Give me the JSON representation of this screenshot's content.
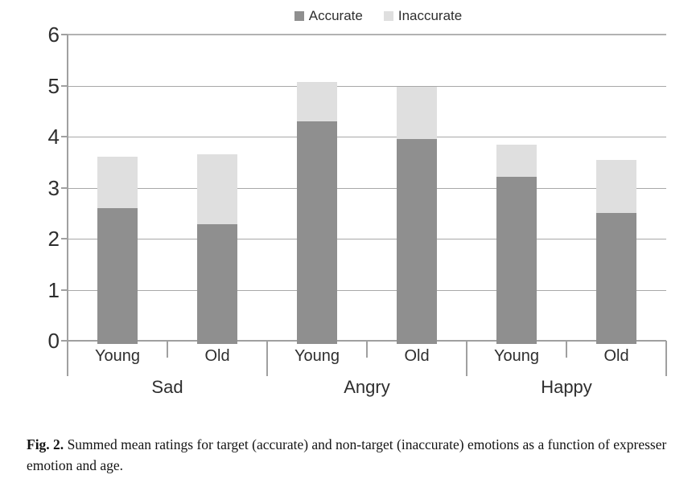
{
  "figure_caption": {
    "label": "Fig. 2.",
    "text": " Summed mean ratings for target (accurate) and non-target (inaccurate) emotions as a function of expresser emotion and age."
  },
  "chart_data": {
    "type": "bar",
    "stacked": true,
    "title": "",
    "xlabel": "",
    "ylabel": "",
    "groups": [
      {
        "label": "Sad",
        "categories": [
          "Young",
          "Old"
        ]
      },
      {
        "label": "Angry",
        "categories": [
          "Young",
          "Old"
        ]
      },
      {
        "label": "Happy",
        "categories": [
          "Young",
          "Old"
        ]
      }
    ],
    "series": [
      {
        "name": "Accurate",
        "color": "#8f8f8f",
        "values": [
          2.6,
          2.28,
          4.3,
          3.95,
          3.21,
          2.51
        ]
      },
      {
        "name": "Inaccurate",
        "color": "#dfdfdf",
        "values": [
          1.0,
          1.37,
          0.77,
          1.02,
          0.64,
          1.04
        ]
      }
    ],
    "ylim": [
      0,
      6
    ],
    "yticks": [
      0,
      1,
      2,
      3,
      4,
      5,
      6
    ],
    "grid": true,
    "legend_position": "top-center"
  }
}
